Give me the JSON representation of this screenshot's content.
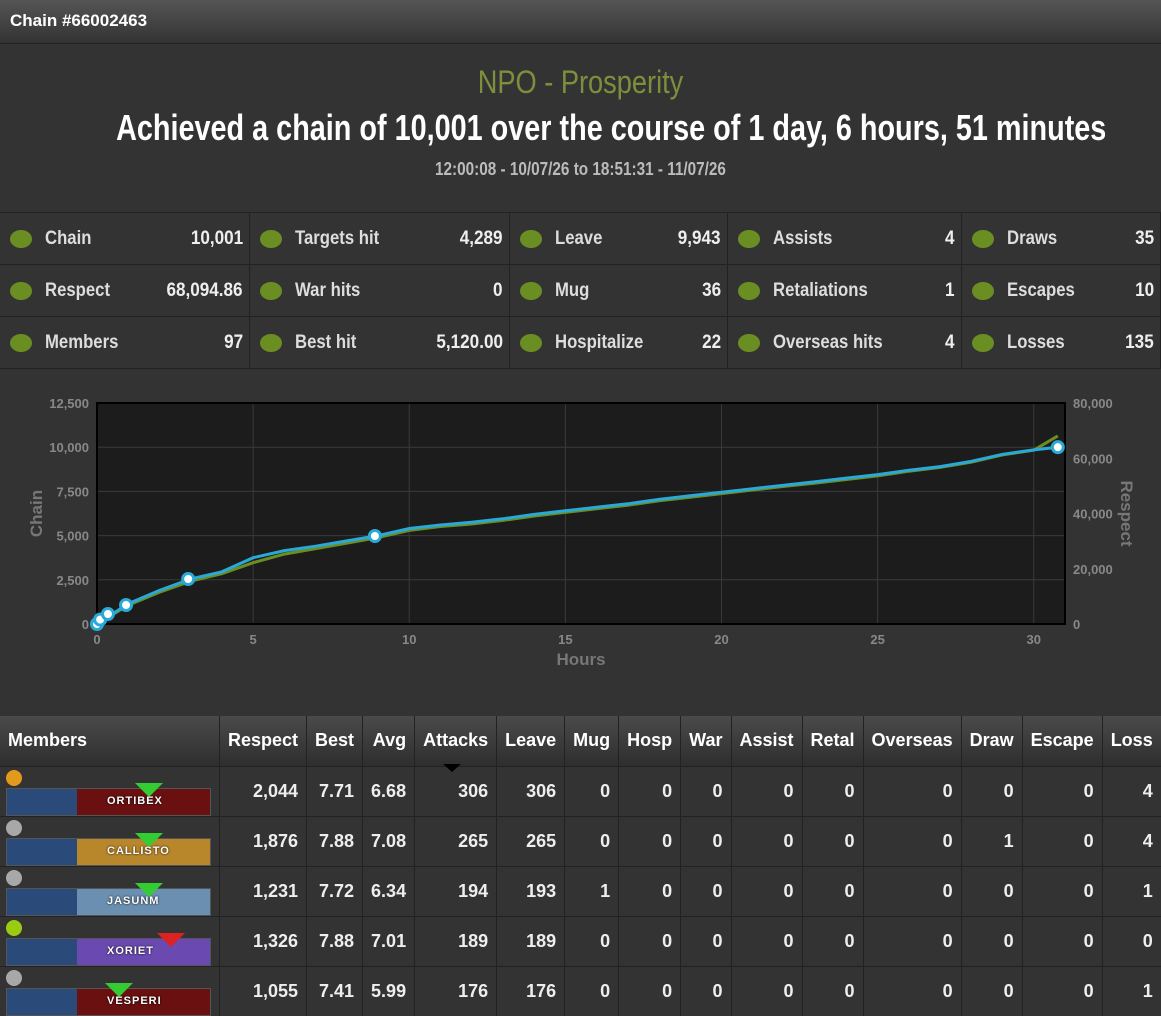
{
  "header": {
    "title": "Chain #66002463"
  },
  "summary": {
    "faction": "NPO - Prosperity",
    "headline": "Achieved a chain of 10,001 over the course of 1 day, 6 hours, 51 minutes",
    "period": "12:00:08 - 10/07/26 to 18:51:31 - 11/07/26"
  },
  "stats": [
    [
      {
        "label": "Chain",
        "value": "10,001"
      },
      {
        "label": "Targets hit",
        "value": "4,289"
      },
      {
        "label": "Leave",
        "value": "9,943"
      },
      {
        "label": "Assists",
        "value": "4"
      },
      {
        "label": "Draws",
        "value": "35"
      }
    ],
    [
      {
        "label": "Respect",
        "value": "68,094.86"
      },
      {
        "label": "War hits",
        "value": "0"
      },
      {
        "label": "Mug",
        "value": "36"
      },
      {
        "label": "Retaliations",
        "value": "1"
      },
      {
        "label": "Escapes",
        "value": "10"
      }
    ],
    [
      {
        "label": "Members",
        "value": "97"
      },
      {
        "label": "Best hit",
        "value": "5,120.00"
      },
      {
        "label": "Hospitalize",
        "value": "22"
      },
      {
        "label": "Overseas hits",
        "value": "4"
      },
      {
        "label": "Losses",
        "value": "135"
      }
    ]
  ],
  "chart_data": {
    "type": "line",
    "xlabel": "Hours",
    "ylabel": "Chain",
    "y2label": "Respect",
    "grid": true,
    "xlim": [
      0,
      31
    ],
    "xticks": [
      0,
      5,
      10,
      15,
      20,
      25,
      30
    ],
    "ylim": [
      0,
      12500
    ],
    "yticks": [
      0,
      {
        "value": 2500,
        "label": "2,500"
      },
      {
        "value": 5000,
        "label": "5,000"
      },
      {
        "value": 7500,
        "label": "7,500"
      },
      {
        "value": 10000,
        "label": "10,000"
      },
      {
        "value": 12500,
        "label": "12,500"
      }
    ],
    "y2lim": [
      0,
      80000
    ],
    "y2ticks": [
      0,
      {
        "value": 20000,
        "label": "20,000"
      },
      {
        "value": 40000,
        "label": "40,000"
      },
      {
        "value": 60000,
        "label": "60,000"
      },
      {
        "value": 80000,
        "label": "80,000"
      }
    ],
    "series": [
      {
        "color": "#6b8e23",
        "axis": "y2",
        "x": [
          0,
          1,
          2,
          3,
          4,
          5,
          6,
          7,
          8,
          9,
          10,
          11,
          12,
          13,
          14,
          15,
          16,
          17,
          18,
          19,
          20,
          21,
          22,
          23,
          24,
          25,
          26,
          27,
          28,
          29,
          30,
          30.77
        ],
        "values": [
          0,
          6800,
          11500,
          15500,
          18200,
          22200,
          25300,
          27300,
          29300,
          31300,
          33900,
          35300,
          36200,
          37500,
          39100,
          40400,
          41700,
          43000,
          44600,
          45900,
          47200,
          48500,
          49800,
          51000,
          52300,
          53600,
          55300,
          56700,
          58600,
          61200,
          62900,
          68094.86
        ]
      },
      {
        "color": "#2aa9d8",
        "x": [
          0,
          1,
          2,
          3,
          4,
          5,
          6,
          7,
          8,
          9,
          10,
          11,
          12,
          13,
          14,
          15,
          16,
          17,
          18,
          19,
          20,
          21,
          22,
          23,
          24,
          25,
          26,
          27,
          28,
          29,
          30,
          30.77
        ],
        "values": [
          0,
          1150,
          1900,
          2550,
          2950,
          3750,
          4150,
          4400,
          4700,
          5000,
          5400,
          5600,
          5750,
          5950,
          6200,
          6400,
          6600,
          6800,
          7050,
          7250,
          7450,
          7650,
          7850,
          8050,
          8250,
          8450,
          8700,
          8900,
          9200,
          9600,
          9850,
          10001
        ]
      },
      {
        "type": "scatter",
        "color": "#2aa9d8",
        "x": [
          0,
          0.1,
          0.35,
          0.93,
          2.92,
          8.9,
          30.77
        ],
        "values": [
          0,
          250,
          566,
          1075,
          2545,
          4977,
          10001
        ]
      }
    ]
  },
  "table": {
    "headers": [
      "Members",
      "Respect",
      "Best",
      "Avg",
      "Attacks",
      "Leave",
      "Mug",
      "Hosp",
      "War",
      "Assist",
      "Retal",
      "Overseas",
      "Draw",
      "Escape",
      "Loss"
    ],
    "rows": [
      {
        "name": "ORTIBEX",
        "status": "#e39a1c",
        "cells": [
          "2,044",
          "7.71",
          "6.68",
          "306",
          "306",
          "0",
          "0",
          "0",
          "0",
          "0",
          "0",
          "0",
          "0",
          "4"
        ]
      },
      {
        "name": "CALLISTO",
        "status": "#a8a8a8",
        "cells": [
          "1,876",
          "7.88",
          "7.08",
          "265",
          "265",
          "0",
          "0",
          "0",
          "0",
          "0",
          "0",
          "1",
          "0",
          "4"
        ]
      },
      {
        "name": "JASUNM",
        "status": "#a8a8a8",
        "cells": [
          "1,231",
          "7.72",
          "6.34",
          "194",
          "193",
          "1",
          "0",
          "0",
          "0",
          "0",
          "0",
          "0",
          "0",
          "1"
        ]
      },
      {
        "name": "XORIET",
        "status": "#9acd12",
        "cells": [
          "1,326",
          "7.88",
          "7.01",
          "189",
          "189",
          "0",
          "0",
          "0",
          "0",
          "0",
          "0",
          "0",
          "0",
          "0"
        ]
      },
      {
        "name": "VESPERI",
        "status": "#a8a8a8",
        "cells": [
          "1,055",
          "7.41",
          "5.99",
          "176",
          "176",
          "0",
          "0",
          "0",
          "0",
          "0",
          "0",
          "0",
          "0",
          "1"
        ]
      }
    ]
  }
}
